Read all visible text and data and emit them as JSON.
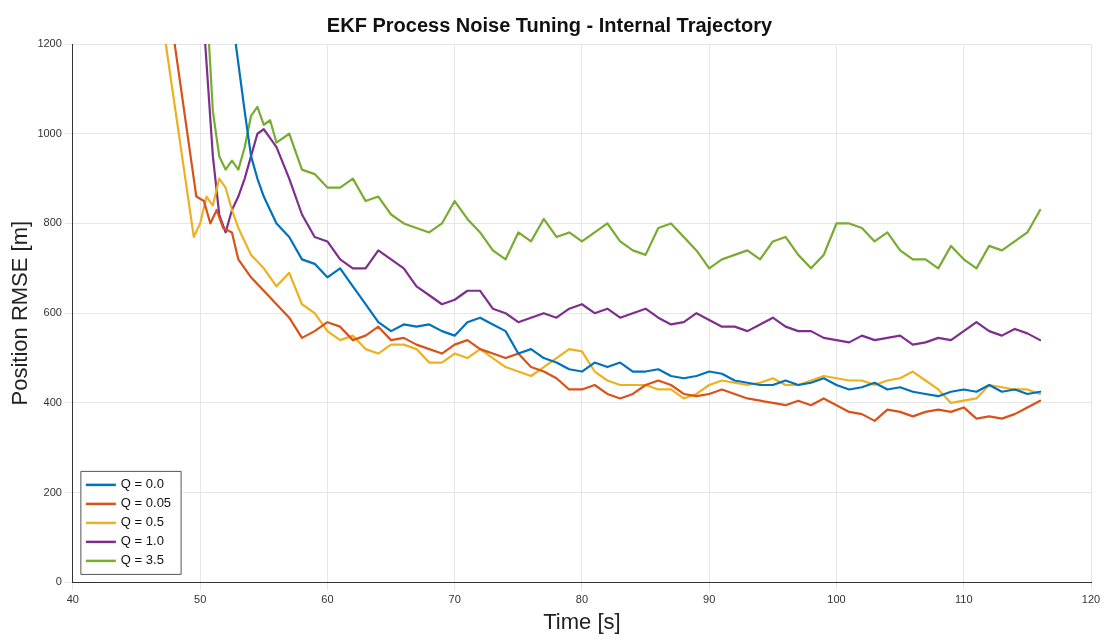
{
  "chart_data": {
    "type": "line",
    "title": "EKF Process Noise Tuning - Internal Trajectory",
    "xlabel": "Time [s]",
    "ylabel": "Position RMSE [m]",
    "xlim": [
      40,
      120
    ],
    "xticks": [
      40,
      50,
      60,
      70,
      80,
      90,
      100,
      110,
      120
    ],
    "ylim": [
      0,
      1200
    ],
    "yticks": [
      0,
      200,
      400,
      600,
      800,
      1000,
      1200
    ],
    "grid": true,
    "legend": "bottom left",
    "marker": "none",
    "line_style": "solid",
    "series": [
      {
        "name": "Q = 0.0",
        "color": "#0072bd",
        "x": [
          52.8,
          53.5,
          54,
          54.5,
          55,
          56,
          57,
          58,
          59,
          60,
          61,
          62,
          63,
          64,
          65,
          66,
          67,
          68,
          69,
          70,
          71,
          72,
          73,
          74,
          75,
          76,
          77,
          78,
          79,
          80,
          81,
          82,
          83,
          84,
          85,
          86,
          87,
          88,
          89,
          90,
          91,
          92,
          93,
          94,
          95,
          96,
          97,
          98,
          99,
          100,
          101,
          102,
          103,
          104,
          105,
          106,
          107,
          108,
          109,
          110,
          111,
          112,
          113,
          114,
          115,
          116
        ],
        "values": [
          1200,
          1050,
          950,
          900,
          860,
          800,
          770,
          720,
          710,
          680,
          700,
          660,
          620,
          580,
          560,
          575,
          570,
          575,
          560,
          550,
          580,
          590,
          575,
          560,
          510,
          520,
          500,
          490,
          475,
          470,
          490,
          480,
          490,
          470,
          470,
          475,
          460,
          455,
          460,
          470,
          465,
          450,
          445,
          440,
          440,
          450,
          440,
          445,
          455,
          440,
          430,
          435,
          445,
          430,
          435,
          425,
          420,
          415,
          425,
          430,
          425,
          440,
          425,
          430,
          420,
          425
        ]
      },
      {
        "name": "Q = 0.05",
        "color": "#d95319",
        "x": [
          48,
          49,
          49.7,
          50.3,
          50.8,
          51.3,
          51.8,
          52.5,
          53,
          54,
          55,
          56,
          57,
          58,
          59,
          60,
          61,
          62,
          63,
          64,
          65,
          66,
          67,
          68,
          69,
          70,
          71,
          72,
          73,
          74,
          75,
          76,
          77,
          78,
          79,
          80,
          81,
          82,
          83,
          84,
          85,
          86,
          87,
          88,
          89,
          90,
          91,
          92,
          93,
          94,
          95,
          96,
          97,
          98,
          99,
          100,
          101,
          102,
          103,
          104,
          105,
          106,
          107,
          108,
          109,
          110,
          111,
          112,
          113,
          114,
          115,
          116
        ],
        "values": [
          1200,
          1000,
          860,
          850,
          800,
          830,
          790,
          780,
          720,
          680,
          650,
          620,
          590,
          545,
          560,
          580,
          570,
          540,
          550,
          570,
          540,
          545,
          530,
          520,
          510,
          530,
          540,
          520,
          510,
          500,
          510,
          480,
          470,
          455,
          430,
          430,
          440,
          420,
          410,
          420,
          440,
          450,
          440,
          420,
          415,
          420,
          430,
          420,
          410,
          405,
          400,
          395,
          405,
          395,
          410,
          395,
          380,
          375,
          360,
          385,
          380,
          370,
          380,
          385,
          380,
          390,
          365,
          370,
          365,
          375,
          390,
          405
        ]
      },
      {
        "name": "Q = 0.5",
        "color": "#edb120",
        "x": [
          47.3,
          49.5,
          50,
          50.5,
          51,
          51.5,
          52,
          52.5,
          53,
          54,
          55,
          56,
          57,
          58,
          59,
          60,
          61,
          62,
          63,
          64,
          65,
          66,
          67,
          68,
          69,
          70,
          71,
          72,
          73,
          74,
          75,
          76,
          77,
          78,
          79,
          80,
          81,
          82,
          83,
          84,
          85,
          86,
          87,
          88,
          89,
          90,
          91,
          92,
          93,
          94,
          95,
          96,
          97,
          98,
          99,
          100,
          101,
          102,
          103,
          104,
          105,
          106,
          107,
          108,
          109,
          110,
          111,
          112,
          113,
          114,
          115,
          116
        ],
        "values": [
          1200,
          770,
          800,
          860,
          840,
          900,
          880,
          830,
          790,
          730,
          700,
          660,
          690,
          620,
          600,
          560,
          540,
          550,
          520,
          510,
          530,
          530,
          520,
          490,
          490,
          510,
          500,
          520,
          500,
          480,
          470,
          460,
          480,
          500,
          520,
          515,
          470,
          450,
          440,
          440,
          440,
          430,
          430,
          410,
          420,
          440,
          450,
          445,
          440,
          445,
          455,
          440,
          440,
          450,
          460,
          455,
          450,
          450,
          440,
          450,
          455,
          470,
          450,
          430,
          400,
          405,
          410,
          440,
          435,
          430,
          430,
          420
        ]
      },
      {
        "name": "Q = 1.0",
        "color": "#7e2f8e",
        "x": [
          50.4,
          51,
          51.5,
          52,
          52.5,
          53,
          53.5,
          54,
          54.5,
          55,
          55.5,
          56,
          57,
          58,
          59,
          60,
          61,
          62,
          63,
          64,
          65,
          66,
          67,
          68,
          69,
          70,
          71,
          72,
          73,
          74,
          75,
          76,
          77,
          78,
          79,
          80,
          81,
          82,
          83,
          84,
          85,
          86,
          87,
          88,
          89,
          90,
          91,
          92,
          93,
          94,
          95,
          96,
          97,
          98,
          99,
          100,
          101,
          102,
          103,
          104,
          105,
          106,
          107,
          108,
          109,
          110,
          111,
          112,
          113,
          114,
          115,
          116
        ],
        "values": [
          1200,
          950,
          820,
          780,
          830,
          860,
          900,
          950,
          1000,
          1010,
          990,
          970,
          900,
          820,
          770,
          760,
          720,
          700,
          700,
          740,
          720,
          700,
          660,
          640,
          620,
          630,
          650,
          650,
          610,
          600,
          580,
          590,
          600,
          590,
          610,
          620,
          600,
          610,
          590,
          600,
          610,
          590,
          575,
          580,
          600,
          585,
          570,
          570,
          560,
          575,
          590,
          570,
          560,
          560,
          545,
          540,
          535,
          550,
          540,
          545,
          550,
          530,
          535,
          545,
          540,
          560,
          580,
          560,
          550,
          565,
          555,
          540
        ]
      },
      {
        "name": "Q = 3.5",
        "color": "#77ac30",
        "x": [
          50.7,
          51,
          51.5,
          52,
          52.5,
          53,
          53.5,
          54,
          54.5,
          55,
          55.5,
          56,
          57,
          58,
          59,
          60,
          61,
          62,
          63,
          64,
          65,
          66,
          67,
          68,
          69,
          70,
          71,
          72,
          73,
          74,
          75,
          76,
          77,
          78,
          79,
          80,
          81,
          82,
          83,
          84,
          85,
          86,
          87,
          88,
          89,
          90,
          91,
          92,
          93,
          94,
          95,
          96,
          97,
          98,
          99,
          100,
          101,
          102,
          103,
          104,
          105,
          106,
          107,
          108,
          109,
          110,
          111,
          112,
          113,
          114,
          115,
          116
        ],
        "values": [
          1200,
          1050,
          950,
          920,
          940,
          920,
          970,
          1040,
          1060,
          1020,
          1030,
          980,
          1000,
          920,
          910,
          880,
          880,
          900,
          850,
          860,
          820,
          800,
          790,
          780,
          800,
          850,
          810,
          780,
          740,
          720,
          780,
          760,
          810,
          770,
          780,
          760,
          780,
          800,
          760,
          740,
          730,
          790,
          800,
          770,
          740,
          700,
          720,
          730,
          740,
          720,
          760,
          770,
          730,
          700,
          730,
          800,
          800,
          790,
          760,
          780,
          740,
          720,
          720,
          700,
          750,
          720,
          700,
          750,
          740,
          760,
          780,
          830
        ]
      }
    ]
  }
}
